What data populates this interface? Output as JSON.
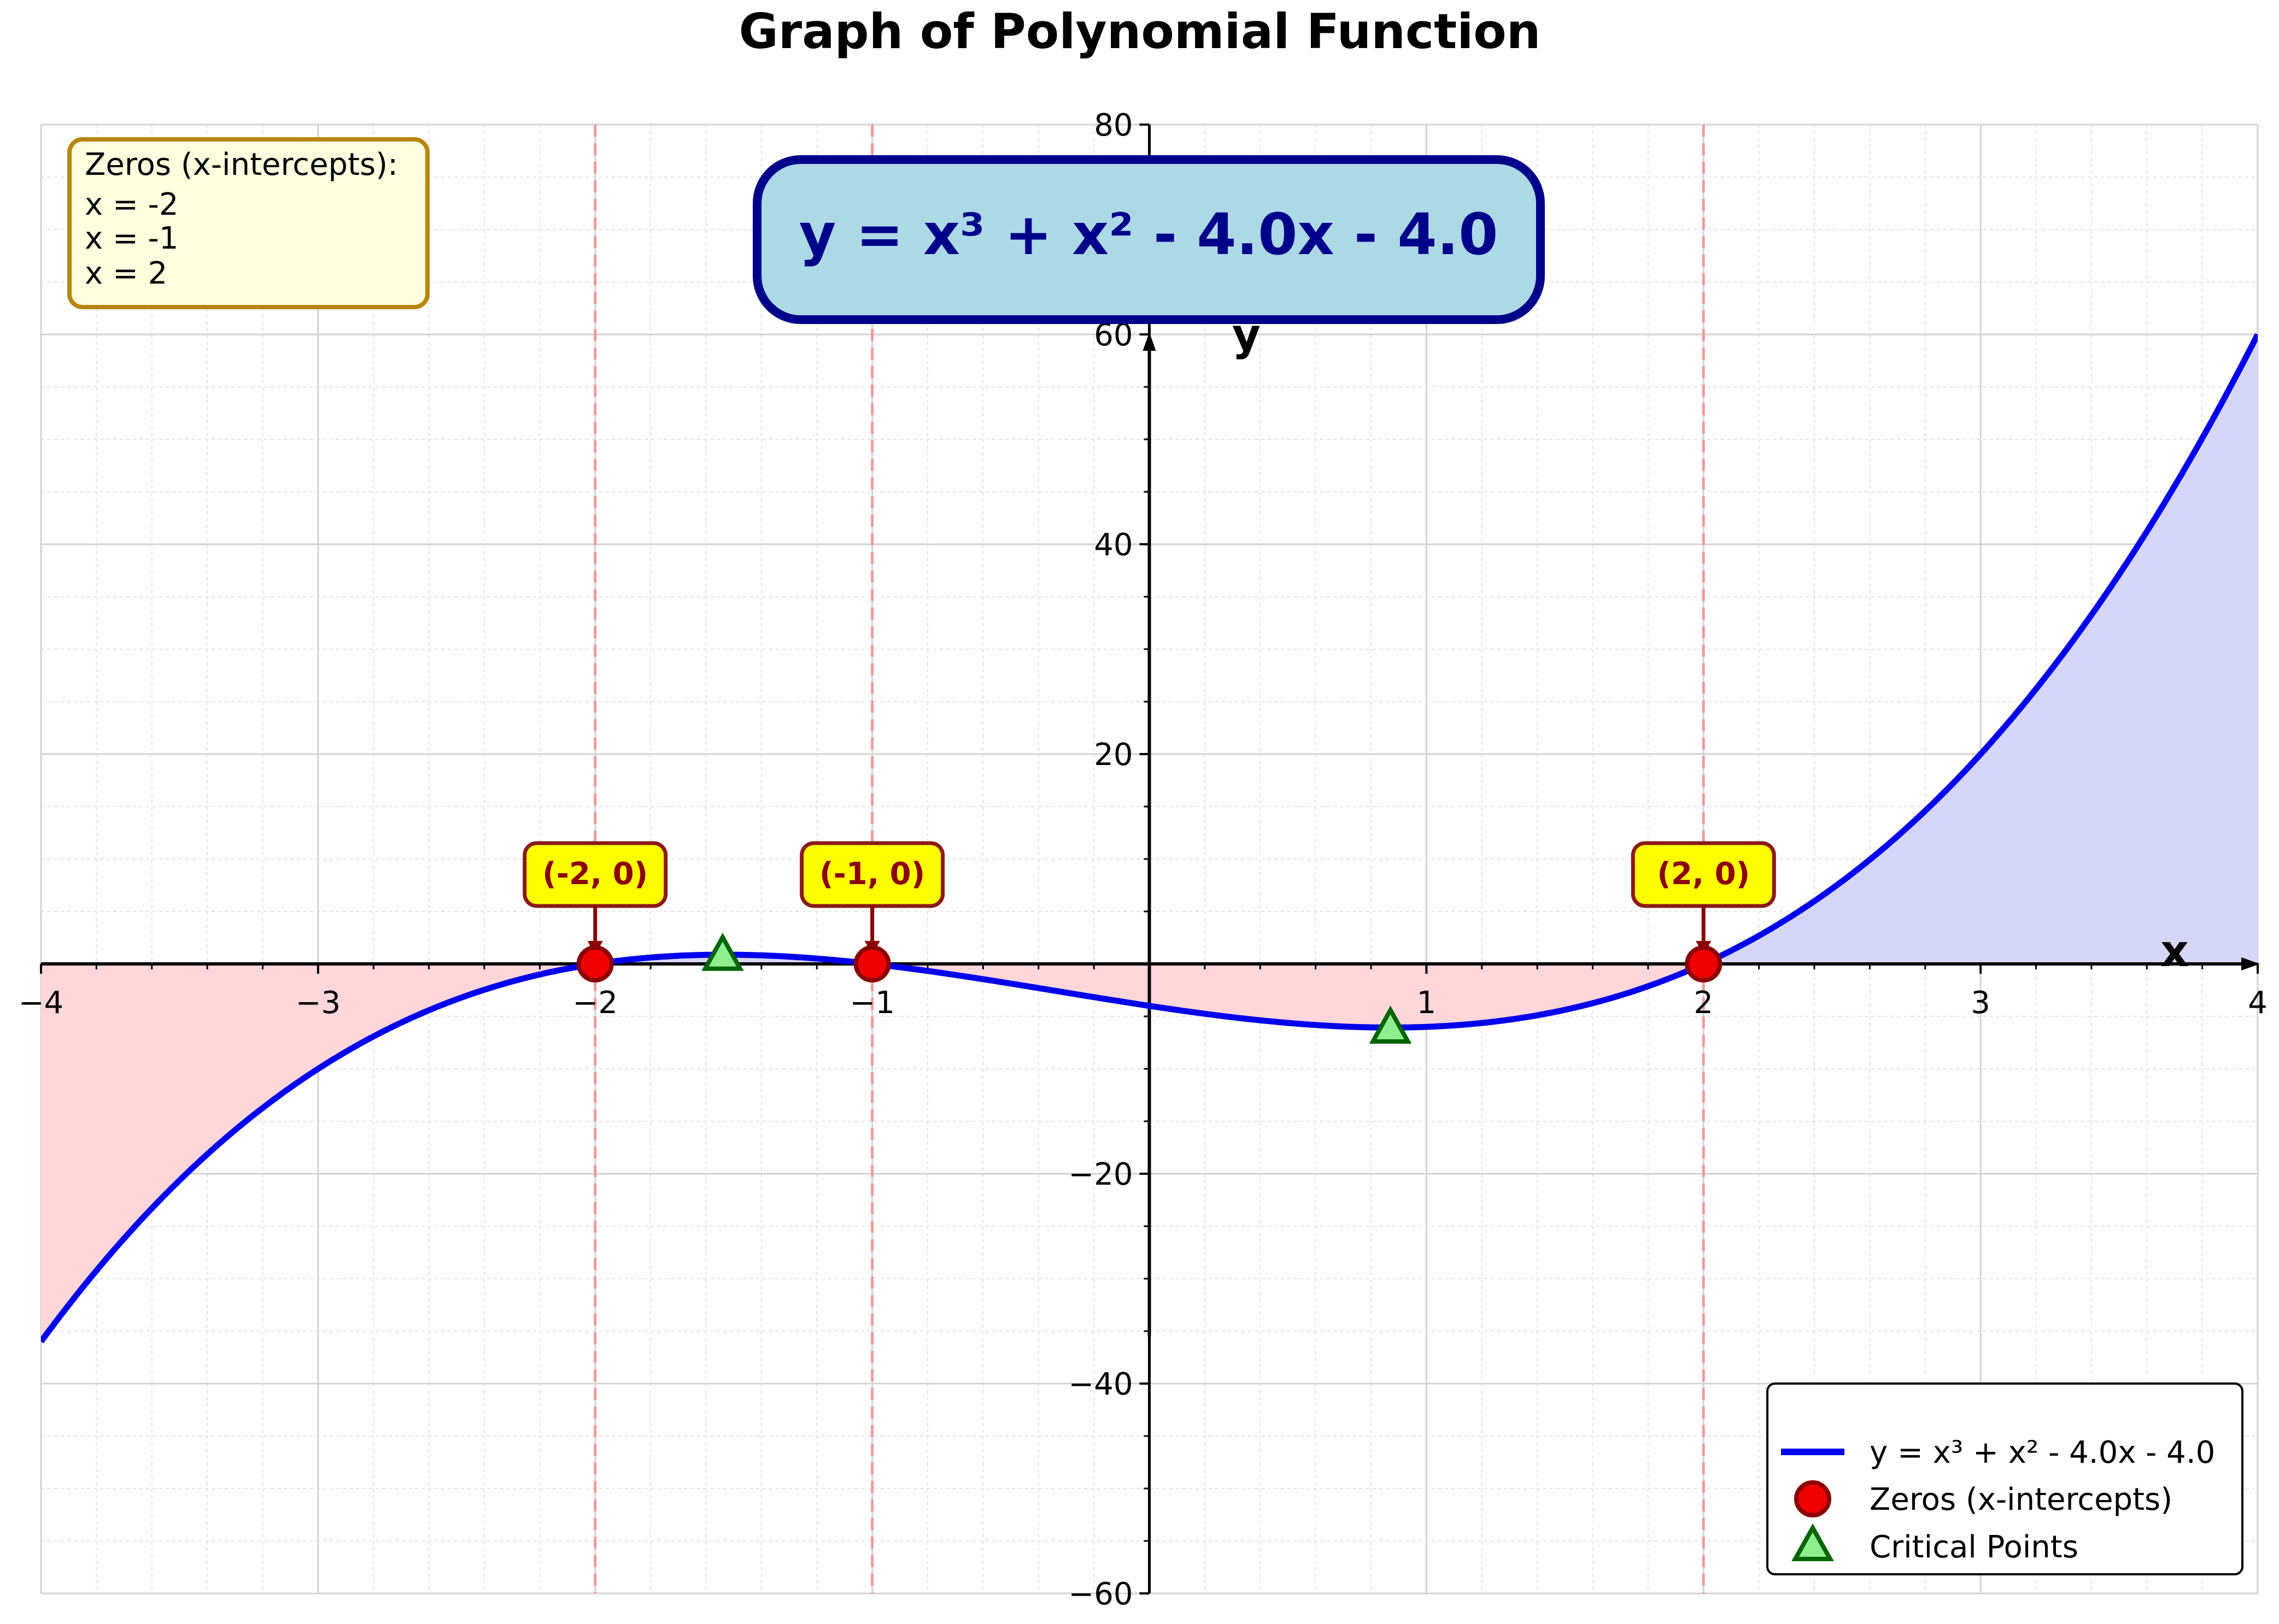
{
  "chart_data": {
    "type": "line",
    "title": "Graph of Polynomial Function",
    "xlabel": "x",
    "ylabel": "y",
    "xlim": [
      -4,
      4
    ],
    "ylim": [
      -60,
      80
    ],
    "x_ticks": [
      -4,
      -3,
      -2,
      -1,
      1,
      2,
      3,
      4
    ],
    "x_tick_labels": [
      "−4",
      "−3",
      "−2",
      "−1",
      "1",
      "2",
      "3",
      "4"
    ],
    "y_ticks": [
      -60,
      -40,
      -20,
      20,
      40,
      60,
      80
    ],
    "y_tick_labels": [
      "−60",
      "−40",
      "−20",
      "20",
      "40",
      "60",
      "80"
    ],
    "grid": true,
    "equation_box": "y = x³ + x² - 4.0x - 4.0",
    "series": [
      {
        "name": "y = x³ + x² - 4.0x - 4.0",
        "kind": "line",
        "color": "#0000ee",
        "x": [
          -4,
          -3.5,
          -3,
          -2.5,
          -2,
          -1.5,
          -1,
          -0.5,
          0,
          0.5,
          0.87,
          1,
          1.5,
          2,
          2.5,
          3,
          3.5,
          4
        ],
        "y": [
          -36,
          -20.63,
          -10,
          -3.38,
          0,
          0.63,
          0,
          -1.88,
          -4,
          -5.63,
          -6.06,
          -6,
          -4.38,
          0,
          6.13,
          20,
          36.38,
          60
        ]
      },
      {
        "name": "Zeros (x-intercepts)",
        "kind": "scatter",
        "marker": "circle",
        "color": "#ee0000",
        "x": [
          -2,
          -1,
          2
        ],
        "y": [
          0,
          0,
          0
        ]
      },
      {
        "name": "Critical Points",
        "kind": "scatter",
        "marker": "triangle",
        "color": "#90ee90",
        "x": [
          -1.54,
          0.87
        ],
        "y": [
          0.88,
          -6.06
        ]
      }
    ],
    "zero_labels": [
      "(-2, 0)",
      "(-1, 0)",
      "(2, 0)"
    ],
    "zeros_box": {
      "title": "Zeros (x-intercepts):",
      "lines": [
        "x = -2",
        "x = -1",
        "x = 2"
      ]
    },
    "legend_position": "lower-right",
    "colors": {
      "curve": "#0000ee",
      "fill_positive": "#d6d6fb",
      "fill_negative": "#ffd6da",
      "zero_marker": "#ee0000",
      "zero_marker_edge": "#8b0000",
      "critical_marker": "#90ee90",
      "critical_marker_edge": "#006400",
      "vline": "#f09a9a",
      "equation_box_fill": "#add8e6",
      "equation_box_edge": "#00008b",
      "zero_label_fill": "#ffff00",
      "zeros_box_fill": "#ffffe0",
      "zeros_box_edge": "#b8860b"
    }
  }
}
